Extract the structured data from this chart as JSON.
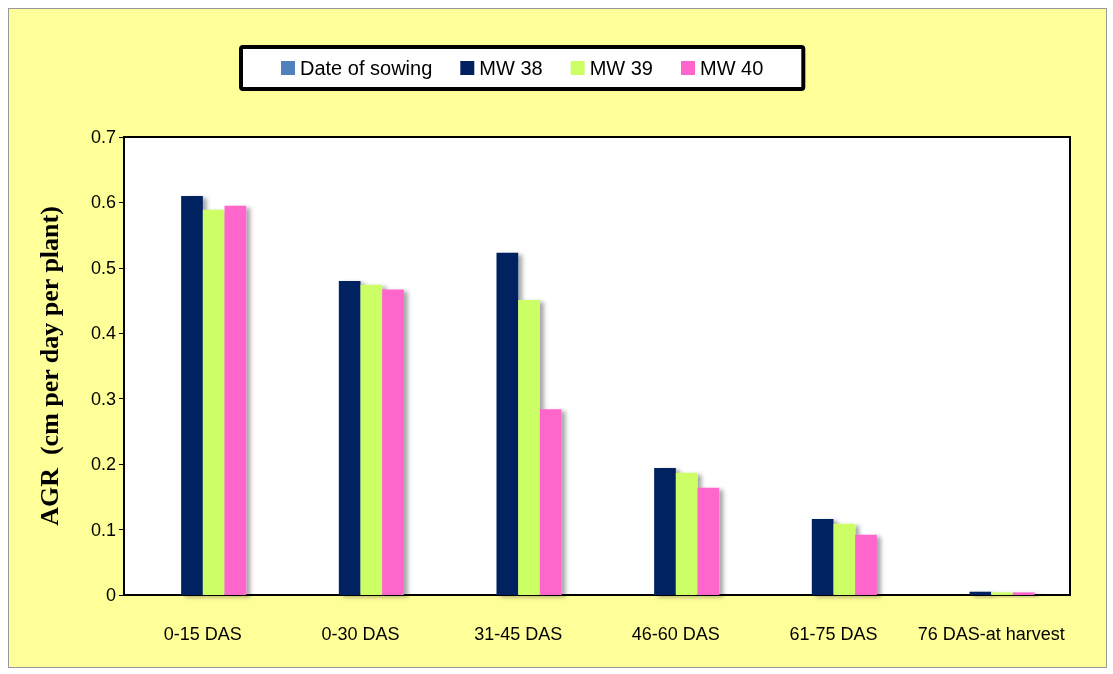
{
  "chart_data": {
    "type": "bar",
    "ylabel": "AGR  (cm per day per plant)",
    "categories": [
      "0-15 DAS",
      "0-30 DAS",
      "31-45 DAS",
      "46-60 DAS",
      "61-75 DAS",
      "76 DAS-at harvest"
    ],
    "series": [
      {
        "name": "Date of sowing",
        "color": "#4f81bd",
        "values": [
          null,
          null,
          null,
          null,
          null,
          null
        ]
      },
      {
        "name": "MW 38",
        "color": "#002060",
        "values": [
          0.61,
          0.48,
          0.523,
          0.194,
          0.116,
          0.005
        ]
      },
      {
        "name": "MW 39",
        "color": "#ccff66",
        "values": [
          0.589,
          0.474,
          0.451,
          0.187,
          0.109,
          0.004
        ]
      },
      {
        "name": "MW 40",
        "color": "#ff66cc",
        "values": [
          0.595,
          0.467,
          0.284,
          0.164,
          0.092,
          0.004
        ]
      }
    ],
    "ylim": [
      0,
      0.7
    ],
    "yticks": [
      0,
      0.1,
      0.2,
      0.3,
      0.4,
      0.5,
      0.6,
      0.7
    ],
    "grid": false,
    "legend": "top"
  }
}
